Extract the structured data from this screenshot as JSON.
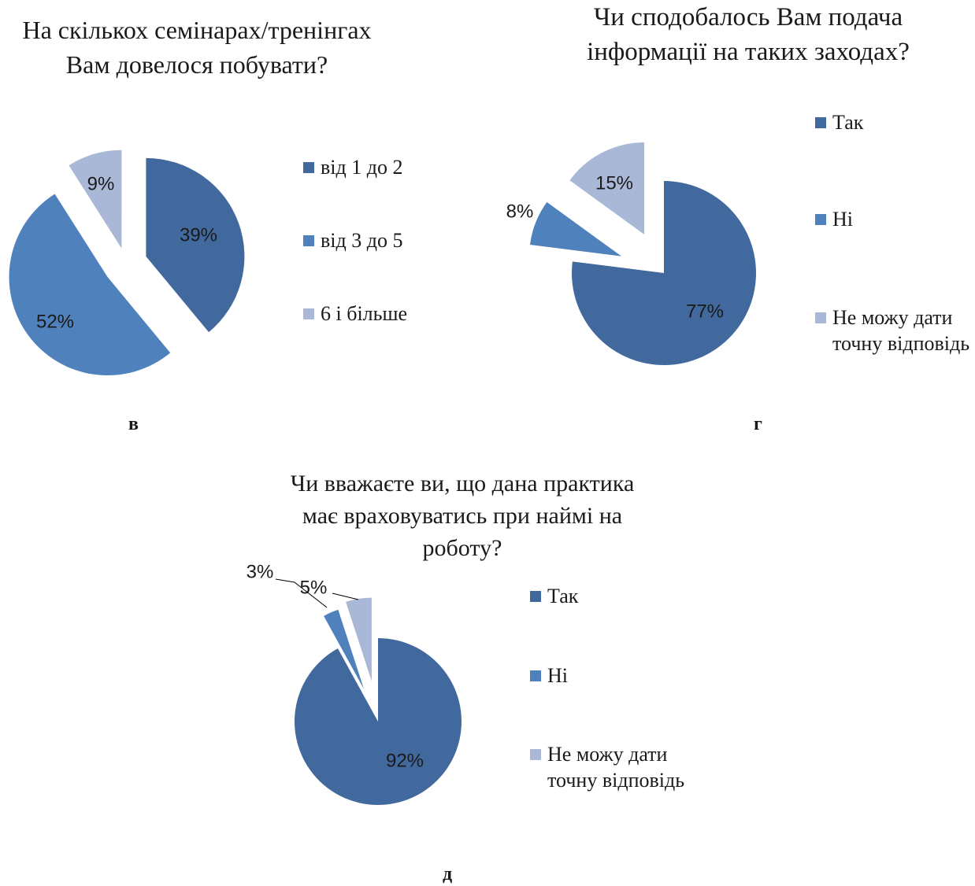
{
  "chart_data": [
    {
      "type": "pie",
      "title": "На скількох семінарах/тренінгах Вам довелося побувати?",
      "categories": [
        "від 1 до 2",
        "від 3 до 5",
        "6 і більше"
      ],
      "values": [
        39,
        52,
        9
      ],
      "value_labels": [
        "39%",
        "52%",
        "9%"
      ],
      "colors": [
        "#41699d",
        "#4f81bd",
        "#a9b8d6"
      ],
      "caption": "в"
    },
    {
      "type": "pie",
      "title": "Чи сподобалось Вам подача інформації на таких заходах?",
      "categories": [
        "Так",
        "Ні",
        "Не можу дати точну відповідь"
      ],
      "values": [
        77,
        8,
        15
      ],
      "value_labels": [
        "77%",
        "8%",
        "15%"
      ],
      "colors": [
        "#41699d",
        "#4f81bd",
        "#a9b8d6"
      ],
      "caption": "г"
    },
    {
      "type": "pie",
      "title": "Чи вважаєте ви, що дана практика має враховуватись при наймі на роботу?",
      "categories": [
        "Так",
        "Ні",
        "Не можу дати точну відповідь"
      ],
      "values": [
        92,
        3,
        5
      ],
      "value_labels": [
        "92%",
        "3%",
        "5%"
      ],
      "colors": [
        "#41699d",
        "#4f81bd",
        "#a9b8d6"
      ],
      "caption": "д"
    }
  ]
}
